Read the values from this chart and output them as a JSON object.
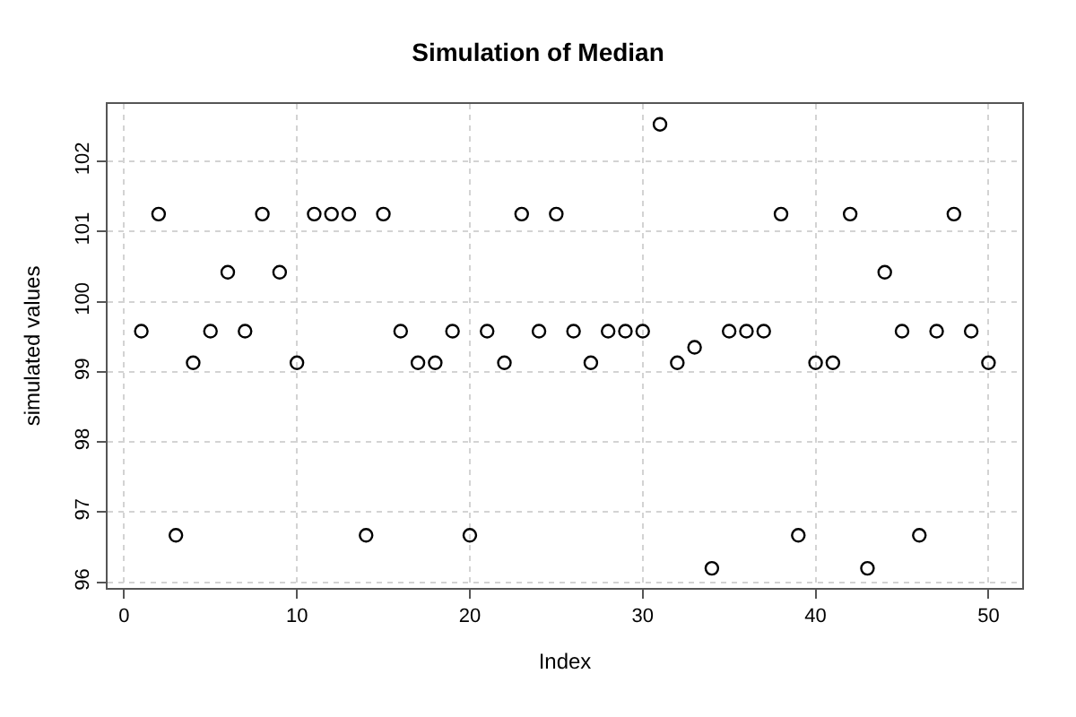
{
  "chart_data": {
    "type": "scatter",
    "title": "Simulation of Median",
    "xlabel": "Index",
    "ylabel": "simulated values",
    "x": [
      1,
      2,
      3,
      4,
      5,
      6,
      7,
      8,
      9,
      10,
      11,
      12,
      13,
      14,
      15,
      16,
      17,
      18,
      19,
      20,
      21,
      22,
      23,
      24,
      25,
      26,
      27,
      28,
      29,
      30,
      31,
      32,
      33,
      34,
      35,
      36,
      37,
      38,
      39,
      40,
      41,
      42,
      43,
      44,
      45,
      46,
      47,
      48,
      49,
      50
    ],
    "series": [
      {
        "color": "#000000",
        "values": [
          99.58,
          101.25,
          96.67,
          99.13,
          99.58,
          100.42,
          99.58,
          101.25,
          100.42,
          99.13,
          101.25,
          101.25,
          101.25,
          96.67,
          101.25,
          99.58,
          99.13,
          99.13,
          99.58,
          96.67,
          99.58,
          99.13,
          101.25,
          99.58,
          101.25,
          99.58,
          99.13,
          99.58,
          99.58,
          99.58,
          102.53,
          99.13,
          99.35,
          96.2,
          99.58,
          99.58,
          99.58,
          101.25,
          96.67,
          99.13,
          99.13,
          101.25,
          96.2,
          100.42,
          99.58,
          96.67,
          99.58,
          101.25,
          99.58,
          99.13
        ]
      }
    ],
    "xlim": [
      -0.95,
      51.95
    ],
    "ylim": [
      95.92,
      102.82
    ],
    "xticks": [
      0,
      10,
      20,
      30,
      40,
      50
    ],
    "yticks": [
      96,
      97,
      98,
      99,
      100,
      101,
      102
    ],
    "grid": true,
    "legend": false,
    "marker": "circle"
  }
}
